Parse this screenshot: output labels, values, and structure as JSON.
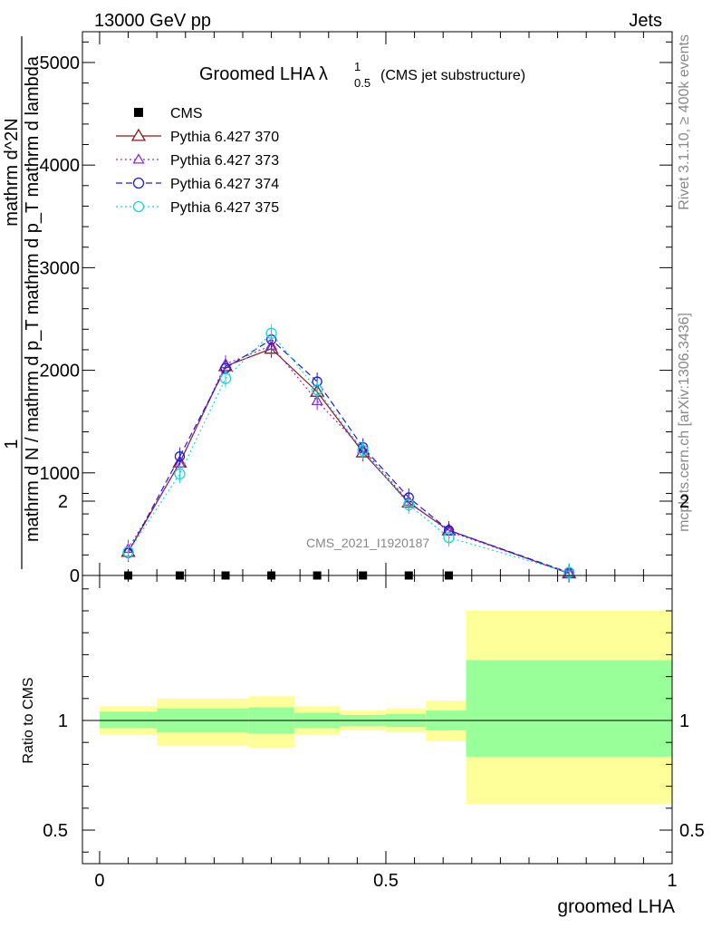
{
  "header": {
    "left": "13000 GeV pp",
    "right": "Jets"
  },
  "side": {
    "rivet": "Rivet 3.1.10, ≥ 400k events",
    "mcplots": "mcplots.cern.ch [arXiv:1306.3436]"
  },
  "watermark": "CMS_2021_I1920187",
  "colors": {
    "cms": "#000000",
    "p370": "#8b1a1a",
    "p373": "#8a2be2",
    "p374": "#1f1fd6",
    "p375": "#1ad6d6",
    "band_inner": "#99ff99",
    "band_outer": "#ffff99"
  },
  "chart_data": [
    {
      "type": "line",
      "title": "Groomed LHA",
      "title_symbol": "λ",
      "title_sup": "1",
      "title_sub": "0.5",
      "title_note": "(CMS jet substructure)",
      "ylabel_num": "1",
      "ylabel_den": "mathrm d N / mathrm d p_T mathrm d p_T mathrm d lambda",
      "ylabel_top": "mathrm d^2N",
      "ylim": [
        0,
        5300
      ],
      "yticks": [
        {
          "v": 0,
          "label": "0"
        },
        {
          "v": 1000,
          "label": "1000"
        },
        {
          "v": 2000,
          "label": "2000"
        },
        {
          "v": 3000,
          "label": "3000"
        },
        {
          "v": 4000,
          "label": "4000"
        },
        {
          "v": 5000,
          "label": "5000"
        }
      ],
      "legend_position": "top-left",
      "x": [
        0.05,
        0.14,
        0.22,
        0.3,
        0.38,
        0.46,
        0.54,
        0.61,
        0.82
      ],
      "series": [
        {
          "name": "CMS",
          "marker": "square",
          "color_key": "cms",
          "values": [
            0,
            0,
            0,
            0,
            0,
            0,
            0,
            0,
            null
          ]
        },
        {
          "name": "Pythia 6.427 370",
          "marker": "triangle",
          "dash": "",
          "color_key": "p370",
          "values": [
            230,
            1100,
            2040,
            2210,
            1790,
            1200,
            710,
            440,
            20
          ]
        },
        {
          "name": "Pythia 6.427 373",
          "marker": "triangle-small",
          "dash": "2,3",
          "color_key": "p373",
          "values": [
            260,
            1090,
            2060,
            2240,
            1700,
            1230,
            720,
            430,
            22
          ]
        },
        {
          "name": "Pythia 6.427 374",
          "marker": "circle",
          "dash": "7,4",
          "color_key": "p374",
          "values": [
            220,
            1160,
            2020,
            2300,
            1890,
            1250,
            760,
            440,
            28
          ]
        },
        {
          "name": "Pythia 6.427 375",
          "marker": "circle-open",
          "dash": "2,3",
          "color_key": "p375",
          "values": [
            230,
            990,
            1920,
            2360,
            1810,
            1220,
            690,
            370,
            30
          ]
        }
      ]
    },
    {
      "type": "area",
      "ylabel": "Ratio to CMS",
      "xlabel": "groomed LHA",
      "ylim": [
        0.35,
        2.3
      ],
      "xlim": [
        -0.03,
        1.0
      ],
      "yticks": [
        {
          "v": 0.5,
          "label": "0.5"
        },
        {
          "v": 1,
          "label": "1"
        },
        {
          "v": 2,
          "label": "2"
        }
      ],
      "xticks": [
        {
          "v": 0,
          "label": "0"
        },
        {
          "v": 0.5,
          "label": "0.5"
        },
        {
          "v": 1,
          "label": "1"
        }
      ],
      "bins": [
        {
          "lo": 0.0,
          "hi": 0.1,
          "in_lo": 0.965,
          "in_hi": 1.04,
          "out_lo": 0.935,
          "out_hi": 1.065
        },
        {
          "lo": 0.1,
          "hi": 0.26,
          "in_lo": 0.945,
          "in_hi": 1.055,
          "out_lo": 0.885,
          "out_hi": 1.1
        },
        {
          "lo": 0.26,
          "hi": 0.34,
          "in_lo": 0.94,
          "in_hi": 1.06,
          "out_lo": 0.875,
          "out_hi": 1.11
        },
        {
          "lo": 0.34,
          "hi": 0.42,
          "in_lo": 0.965,
          "in_hi": 1.035,
          "out_lo": 0.935,
          "out_hi": 1.065
        },
        {
          "lo": 0.42,
          "hi": 0.5,
          "in_lo": 0.975,
          "in_hi": 1.025,
          "out_lo": 0.955,
          "out_hi": 1.045
        },
        {
          "lo": 0.5,
          "hi": 0.57,
          "in_lo": 0.97,
          "in_hi": 1.03,
          "out_lo": 0.945,
          "out_hi": 1.055
        },
        {
          "lo": 0.57,
          "hi": 0.64,
          "in_lo": 0.955,
          "in_hi": 1.045,
          "out_lo": 0.905,
          "out_hi": 1.09
        },
        {
          "lo": 0.64,
          "hi": 1.0,
          "in_lo": 0.835,
          "in_hi": 1.275,
          "out_lo": 0.62,
          "out_hi": 1.5
        }
      ]
    }
  ]
}
